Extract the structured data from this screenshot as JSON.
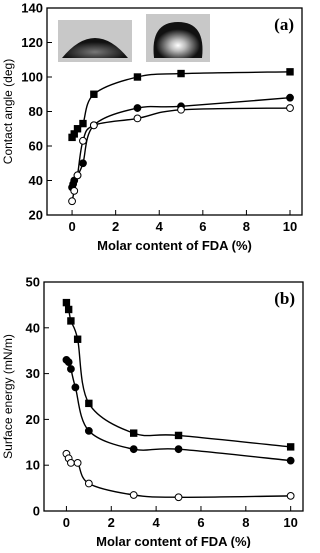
{
  "chart_data": [
    {
      "type": "scatter",
      "panel": "(a)",
      "xlabel": "Molar content of FDA (%)",
      "ylabel": "Contact angle (deg)",
      "xlim": [
        -1.15,
        10.55
      ],
      "ylim": [
        20,
        140
      ],
      "xticks": [
        0,
        2,
        4,
        6,
        8,
        10
      ],
      "yticks": [
        20,
        40,
        60,
        80,
        100,
        120,
        140
      ],
      "series": [
        {
          "marker": "square",
          "filled": true,
          "color": "#000000",
          "x": [
            0,
            0.1,
            0.25,
            0.5,
            1,
            3,
            5,
            10
          ],
          "values": [
            65,
            67,
            70,
            73,
            90,
            100,
            102,
            103
          ]
        },
        {
          "marker": "circle",
          "filled": true,
          "color": "#000000",
          "x": [
            0,
            0.05,
            0.1,
            0.25,
            0.5,
            1,
            3,
            5,
            10
          ],
          "values": [
            36,
            38,
            40,
            43,
            50,
            72,
            82,
            83,
            88
          ]
        },
        {
          "marker": "circle",
          "filled": false,
          "color": "#000000",
          "x": [
            0,
            0.1,
            0.25,
            0.5,
            1,
            3,
            5,
            10
          ],
          "values": [
            28,
            34,
            43,
            63,
            72,
            76,
            81,
            82
          ]
        }
      ]
    },
    {
      "type": "scatter",
      "panel": "(b)",
      "xlabel": "Molar content  of FDA (%)",
      "ylabel": "Surface energy (mN/m)",
      "xlim": [
        -1.0,
        10.55
      ],
      "ylim": [
        0,
        50
      ],
      "xticks": [
        0,
        2,
        4,
        6,
        8,
        10
      ],
      "yticks": [
        0,
        10,
        20,
        30,
        40,
        50
      ],
      "series": [
        {
          "marker": "square",
          "filled": true,
          "color": "#000000",
          "x": [
            0,
            0.1,
            0.2,
            0.5,
            1,
            3,
            5,
            10
          ],
          "values": [
            45.5,
            44,
            41.5,
            37.5,
            23.5,
            17,
            16.5,
            14
          ]
        },
        {
          "marker": "circle",
          "filled": true,
          "color": "#000000",
          "x": [
            0,
            0.1,
            0.2,
            0.4,
            1,
            3,
            5,
            10
          ],
          "values": [
            33,
            32.5,
            31,
            27,
            17.5,
            13.5,
            13.5,
            11
          ]
        },
        {
          "marker": "circle",
          "filled": false,
          "color": "#000000",
          "x": [
            0,
            0.1,
            0.2,
            0.5,
            1,
            3,
            5,
            10
          ],
          "values": [
            12.5,
            11.5,
            10.5,
            10.5,
            6,
            3.5,
            3,
            3.3
          ]
        }
      ]
    }
  ]
}
